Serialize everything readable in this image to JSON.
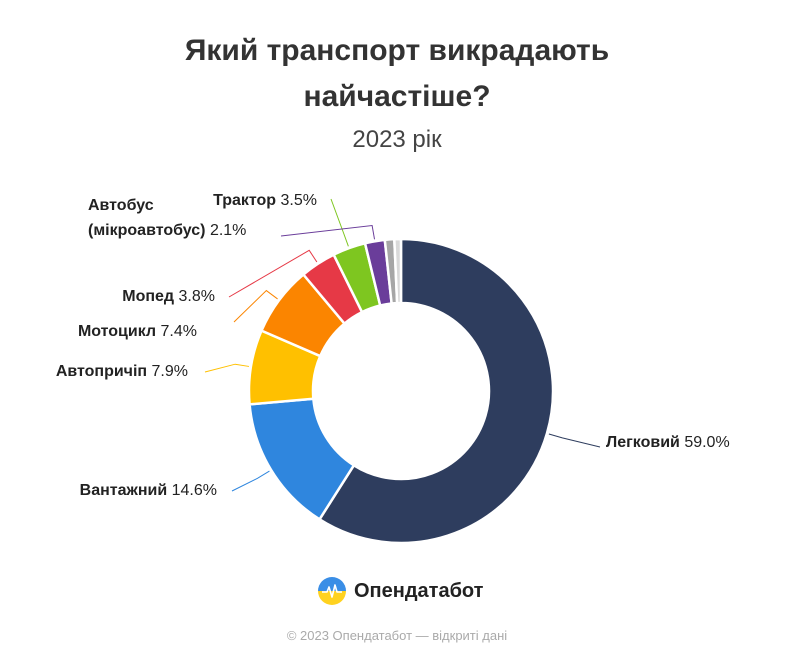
{
  "chart_data": {
    "type": "pie",
    "title_line1": "Який транспорт викрадають",
    "title_line2": "найчастіше?",
    "subtitle": "2023 рік",
    "slices": [
      {
        "name": "Легковий",
        "value": 59.0,
        "value_label": "59.0%",
        "color": "#2e3d5e"
      },
      {
        "name": "Вантажний",
        "value": 14.6,
        "value_label": "14.6%",
        "color": "#2f86de"
      },
      {
        "name": "Автопричіп",
        "value": 7.9,
        "value_label": "7.9%",
        "color": "#ffc000"
      },
      {
        "name": "Мотоцикл",
        "value": 7.4,
        "value_label": "7.4%",
        "color": "#fb8500"
      },
      {
        "name": "Мопед",
        "value": 3.8,
        "value_label": "3.8%",
        "color": "#e63946"
      },
      {
        "name": "Трактор",
        "value": 3.5,
        "value_label": "3.5%",
        "color": "#7ec620"
      },
      {
        "name": "Автобус (мікроавтобус)",
        "name_line1": "Автобус",
        "name_line2": "(мікроавтобус)",
        "value": 2.1,
        "value_label": "2.1%",
        "color": "#6a3d9a"
      },
      {
        "name": "",
        "value": 1.0,
        "value_label": "",
        "color": "#a6a6a6"
      },
      {
        "name": "",
        "value": 0.7,
        "value_label": "",
        "color": "#d9d9d9"
      }
    ]
  },
  "brand": {
    "name": "Опендатабот"
  },
  "footer": "© 2023 Опендатабот — відкриті дані"
}
